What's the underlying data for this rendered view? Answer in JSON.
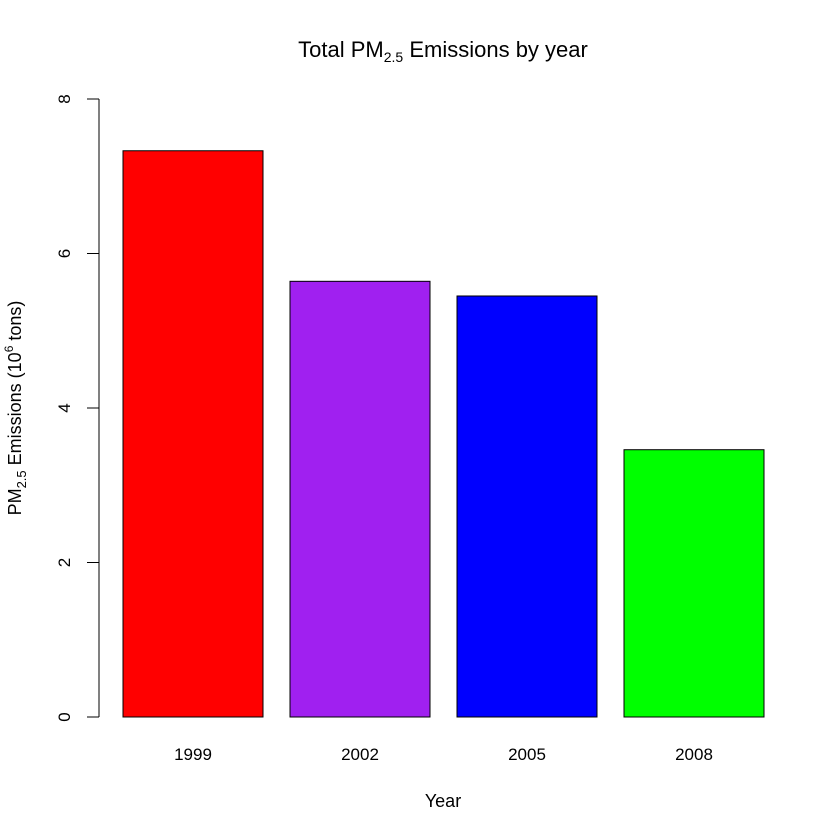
{
  "chart_data": {
    "type": "bar",
    "title": {
      "prefix": "Total PM",
      "subscript": "2.5",
      "suffix": " Emissions by year"
    },
    "xlabel": "Year",
    "ylabel": {
      "prefix": "PM",
      "subscript": "2.5",
      "middle": " Emissions (10",
      "superscript": "6",
      "suffix": " tons)"
    },
    "categories": [
      "1999",
      "2002",
      "2005",
      "2008"
    ],
    "values": [
      7.33,
      5.64,
      5.45,
      3.46
    ],
    "colors": [
      "#ff0000",
      "#a020f0",
      "#0000ff",
      "#00ff00"
    ],
    "ylim": [
      0,
      8
    ],
    "yticks": [
      "0",
      "2",
      "4",
      "6",
      "8"
    ],
    "grid": false,
    "legend": "none"
  }
}
